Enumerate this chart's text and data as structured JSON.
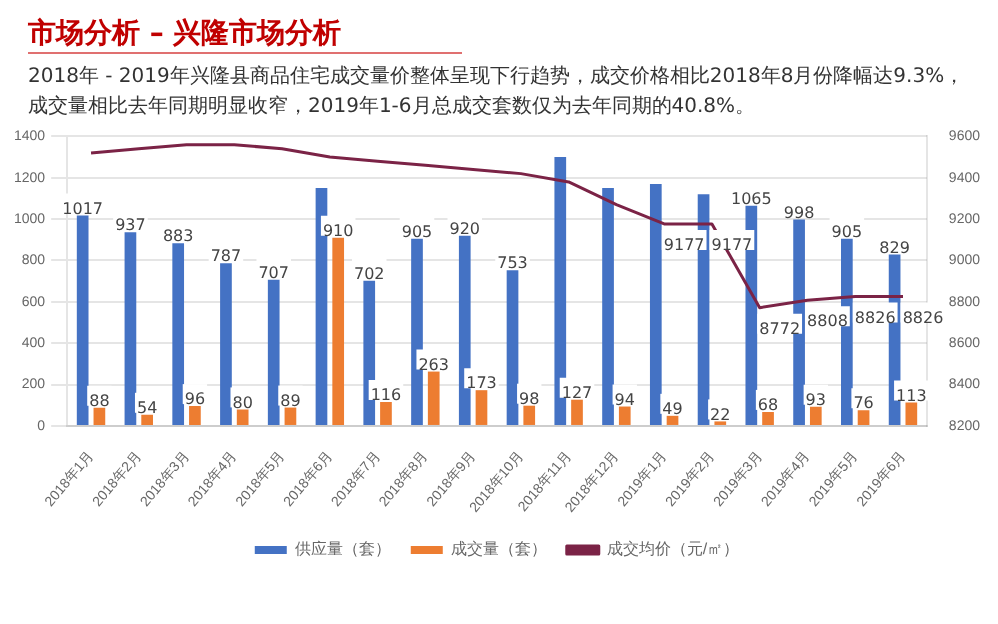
{
  "chart_data": {
    "type": "bar",
    "title": "市场分析 – 兴隆市场分析",
    "annotations": [
      "2018年 - 2019年兴隆县商品住宅成交量价整体呈现下行趋势，成交价格相比2018年8月份降幅达9.3%，",
      "成交量相比去年同期明显收窄，2019年1-6月总成交套数仅为去年同期的40.8%。"
    ],
    "categories": [
      "2018年1月",
      "2018年2月",
      "2018年3月",
      "2018年4月",
      "2018年5月",
      "2018年6月",
      "2018年7月",
      "2018年8月",
      "2018年9月",
      "2018年10月",
      "2018年11月",
      "2018年12月",
      "2019年1月",
      "2019年2月",
      "2019年3月",
      "2019年4月",
      "2019年5月",
      "2019年6月"
    ],
    "series": [
      {
        "name": "供应量（套）",
        "color": "#4472c4",
        "values": [
          1017,
          937,
          883,
          787,
          707,
          1150,
          702,
          905,
          920,
          753,
          1300,
          1150,
          1170,
          1120,
          1065,
          998,
          905,
          829
        ],
        "value_labels": [
          "1017",
          "937",
          "883",
          "787",
          "707",
          null,
          "702",
          "905",
          "920",
          "753",
          null,
          null,
          null,
          null,
          "1065",
          "998",
          "905",
          "829"
        ]
      },
      {
        "name": "成交量（套）",
        "color": "#ed7d31",
        "values": [
          88,
          54,
          96,
          80,
          89,
          910,
          116,
          263,
          173,
          98,
          127,
          94,
          49,
          22,
          68,
          93,
          76,
          113
        ],
        "value_labels": [
          "88",
          "54",
          "96",
          "80",
          "89",
          "910",
          "116",
          "263",
          "173",
          "98",
          "127",
          "94",
          "49",
          "22",
          "68",
          "93",
          "76",
          "113"
        ]
      },
      {
        "name": "成交均价（元/㎡）",
        "type": "line",
        "axis": "y2",
        "color": "#7b2346",
        "values": [
          9520,
          9540,
          9560,
          9560,
          9540,
          9500,
          9480,
          9460,
          9440,
          9420,
          9380,
          9270,
          9177,
          9177,
          8772,
          8808,
          8826,
          8826
        ],
        "value_labels": [
          null,
          null,
          null,
          null,
          null,
          null,
          null,
          null,
          null,
          null,
          null,
          null,
          "9177",
          "9177",
          "8772",
          "8808",
          "8826",
          "8826"
        ]
      }
    ],
    "ylim": [
      0,
      1400
    ],
    "yticks": [
      0,
      200,
      400,
      600,
      800,
      1000,
      1200,
      1400
    ],
    "y2lim": [
      8200,
      9600
    ],
    "y2ticks": [
      8200,
      8400,
      8600,
      8800,
      9000,
      9200,
      9400,
      9600
    ],
    "grid": "y",
    "legend": "bottom",
    "marker": "none"
  }
}
